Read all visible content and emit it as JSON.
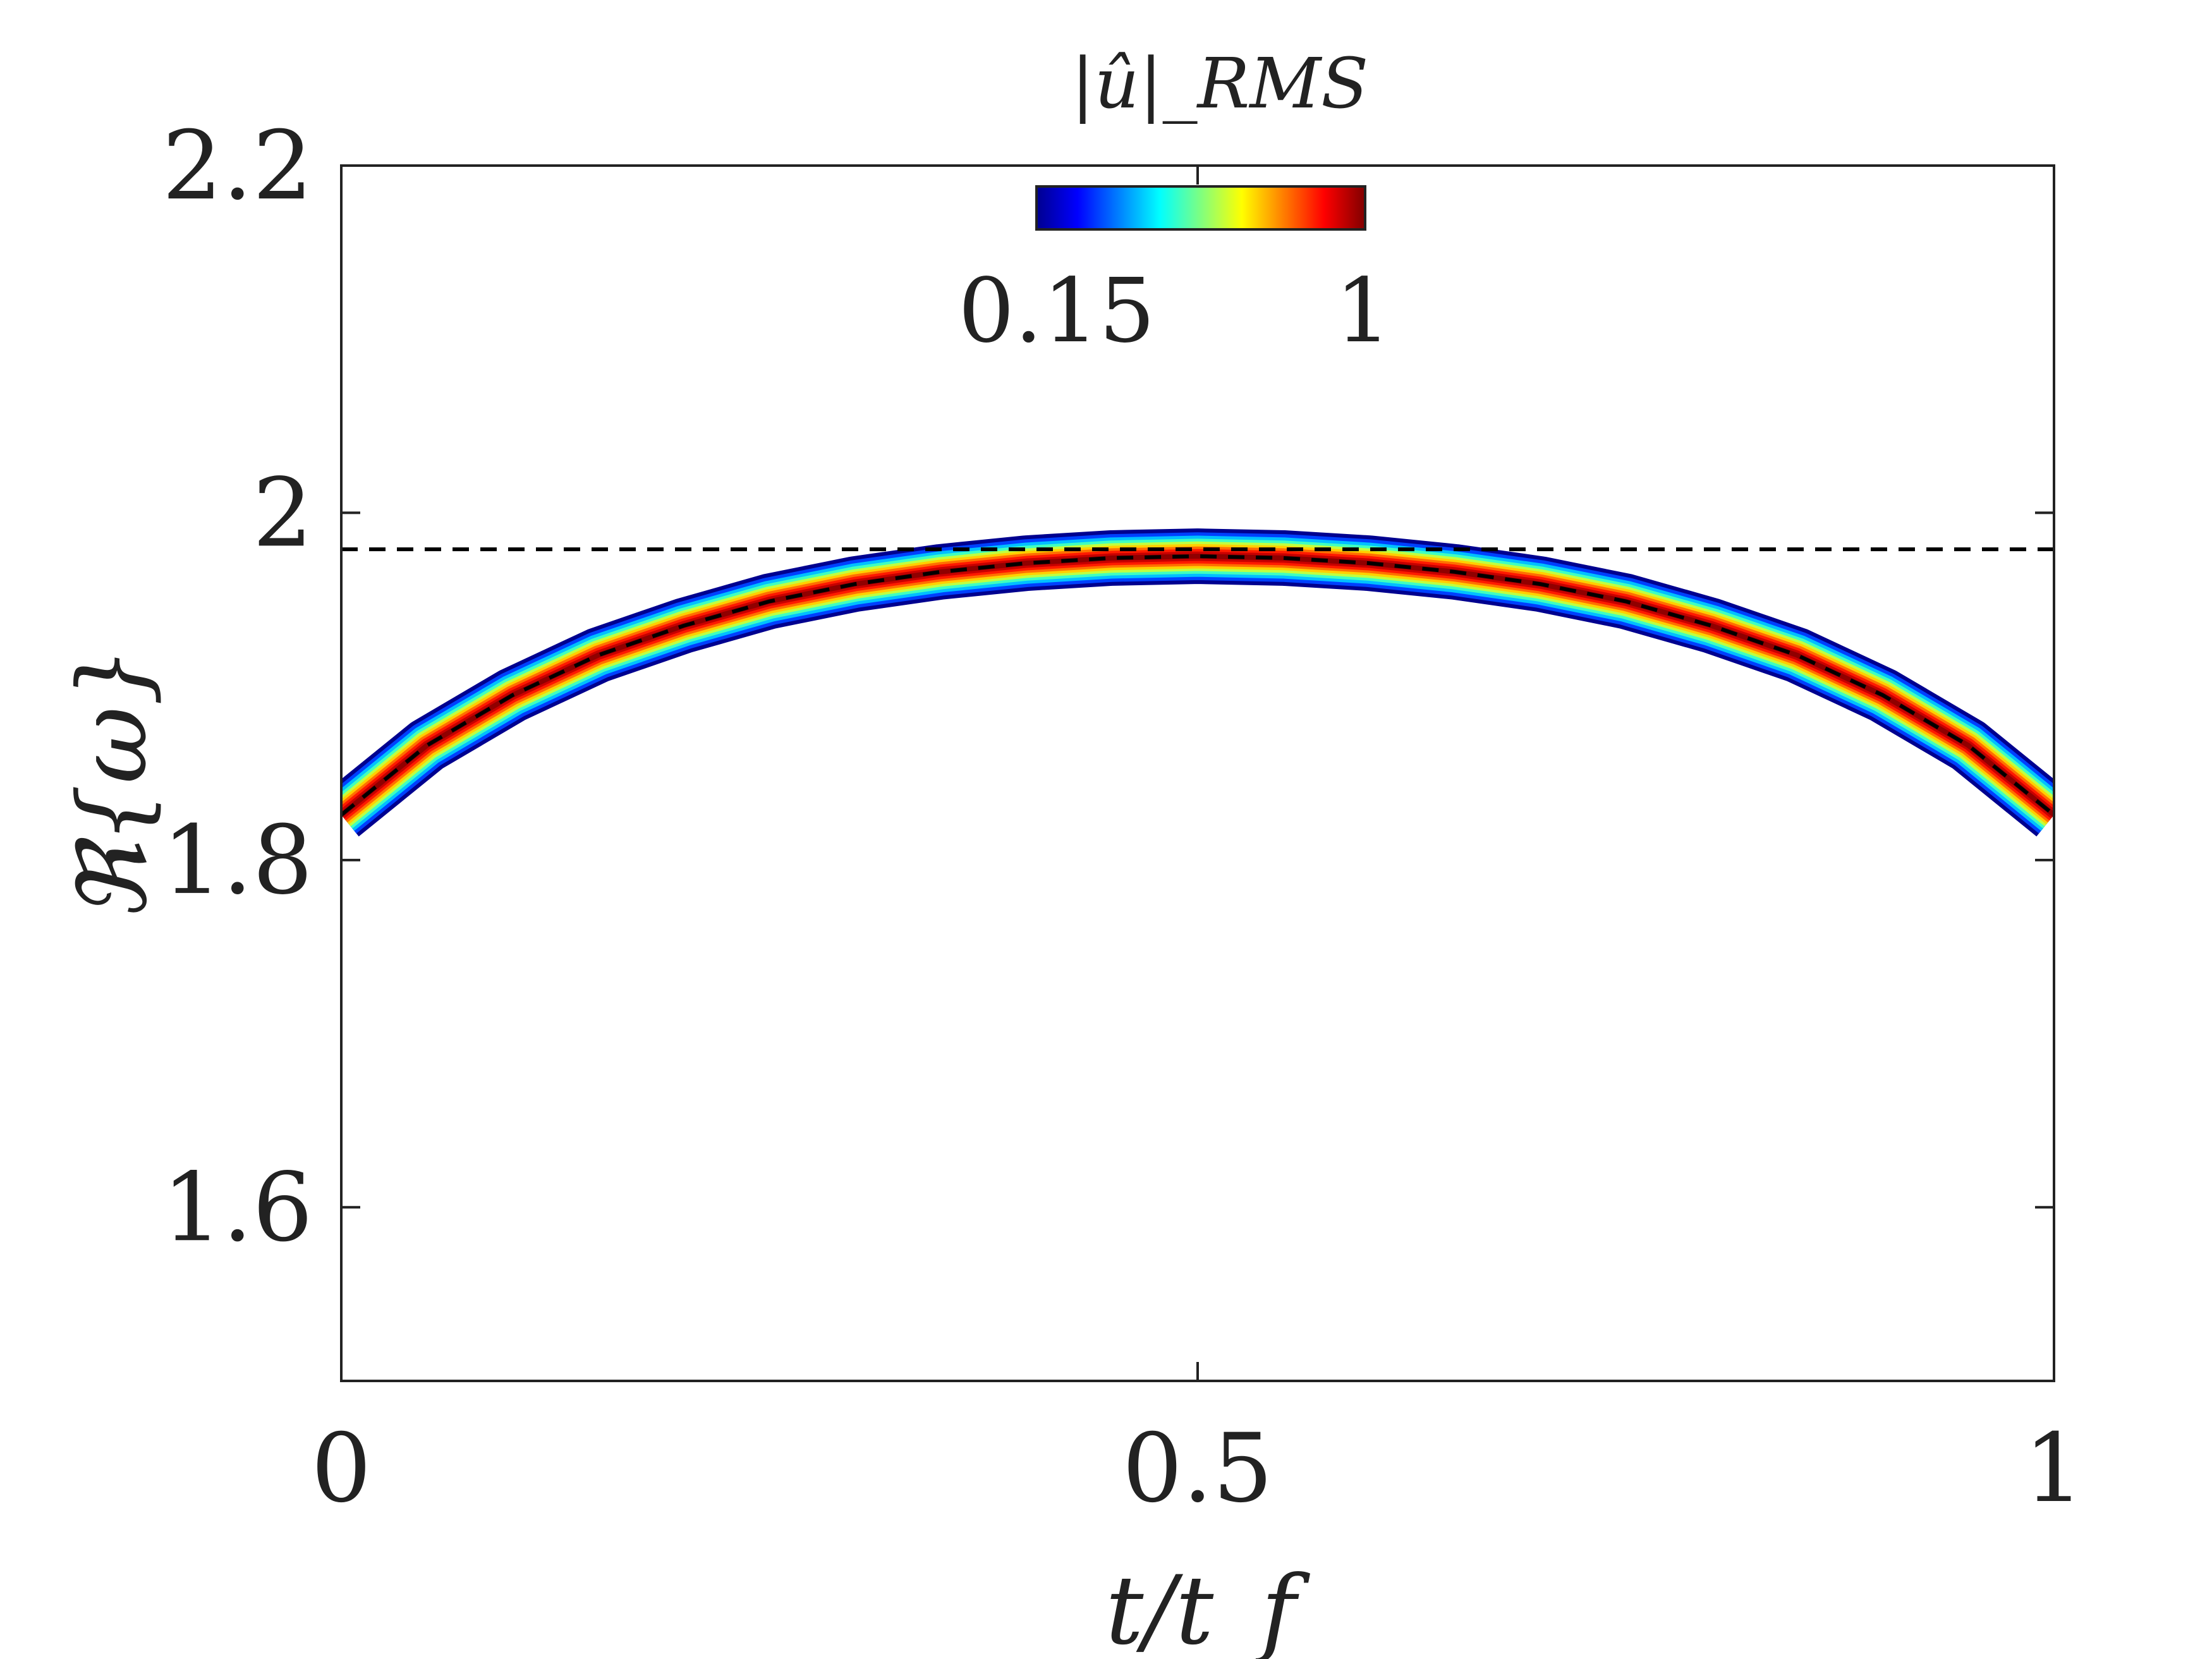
{
  "chart_data": {
    "type": "heatmap",
    "title": "",
    "xlabel": "t/t_f",
    "ylabel": "ℜ{ω}",
    "xlim": [
      0,
      1
    ],
    "ylim": [
      1.5,
      2.2
    ],
    "xticks": [
      0,
      0.5,
      1
    ],
    "xtick_labels": [
      "0",
      "0.5",
      "1"
    ],
    "yticks": [
      1.6,
      1.8,
      2.0,
      2.2
    ],
    "ytick_labels": [
      "1.6",
      "1.8",
      "2",
      "2.2"
    ],
    "colorbar": {
      "title": "|û|_RMS",
      "min": 0.15,
      "max": 1,
      "min_label": "0.15",
      "max_label": "1",
      "colormap": "jet",
      "placement": "top-center-inside"
    },
    "band": {
      "x": [
        0,
        0.05,
        0.1,
        0.15,
        0.2,
        0.25,
        0.3,
        0.35,
        0.4,
        0.45,
        0.5,
        0.55,
        0.6,
        0.65,
        0.7,
        0.75,
        0.8,
        0.85,
        0.9,
        0.95,
        1
      ],
      "center": [
        1.826,
        1.866,
        1.895,
        1.918,
        1.935,
        1.949,
        1.959,
        1.966,
        1.971,
        1.974,
        1.975,
        1.974,
        1.971,
        1.966,
        1.959,
        1.949,
        1.935,
        1.918,
        1.895,
        1.866,
        1.826
      ],
      "half_width": 0.016
    },
    "series": [
      {
        "style": "dashed",
        "color": "#000000",
        "x": [
          0,
          0.05,
          0.1,
          0.15,
          0.2,
          0.25,
          0.3,
          0.35,
          0.4,
          0.45,
          0.5,
          0.55,
          0.6,
          0.65,
          0.7,
          0.75,
          0.8,
          0.85,
          0.9,
          0.95,
          1
        ],
        "y": [
          1.826,
          1.866,
          1.895,
          1.918,
          1.935,
          1.949,
          1.959,
          1.966,
          1.971,
          1.974,
          1.975,
          1.974,
          1.971,
          1.966,
          1.959,
          1.949,
          1.935,
          1.918,
          1.895,
          1.866,
          1.826
        ]
      },
      {
        "style": "dashed",
        "color": "#000000",
        "x": [
          0,
          1
        ],
        "y": [
          1.979,
          1.979
        ]
      }
    ],
    "grid": false
  }
}
